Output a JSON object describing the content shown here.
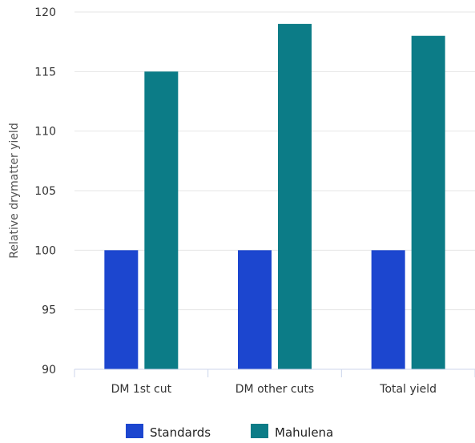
{
  "chart_data": {
    "type": "bar",
    "title": "",
    "xlabel": "",
    "ylabel": "Relative drymatter yield",
    "ylim": [
      90,
      120
    ],
    "yticks": [
      90,
      95,
      100,
      105,
      110,
      115,
      120
    ],
    "categories": [
      "DM 1st cut",
      "DM other cuts",
      "Total yield"
    ],
    "series": [
      {
        "name": "Standards",
        "color": "#1c46cf",
        "values": [
          100,
          100,
          100
        ]
      },
      {
        "name": "Mahulena",
        "color": "#0c7c87",
        "values": [
          115,
          119,
          118
        ]
      }
    ],
    "grid": true,
    "legend": "bottom"
  }
}
